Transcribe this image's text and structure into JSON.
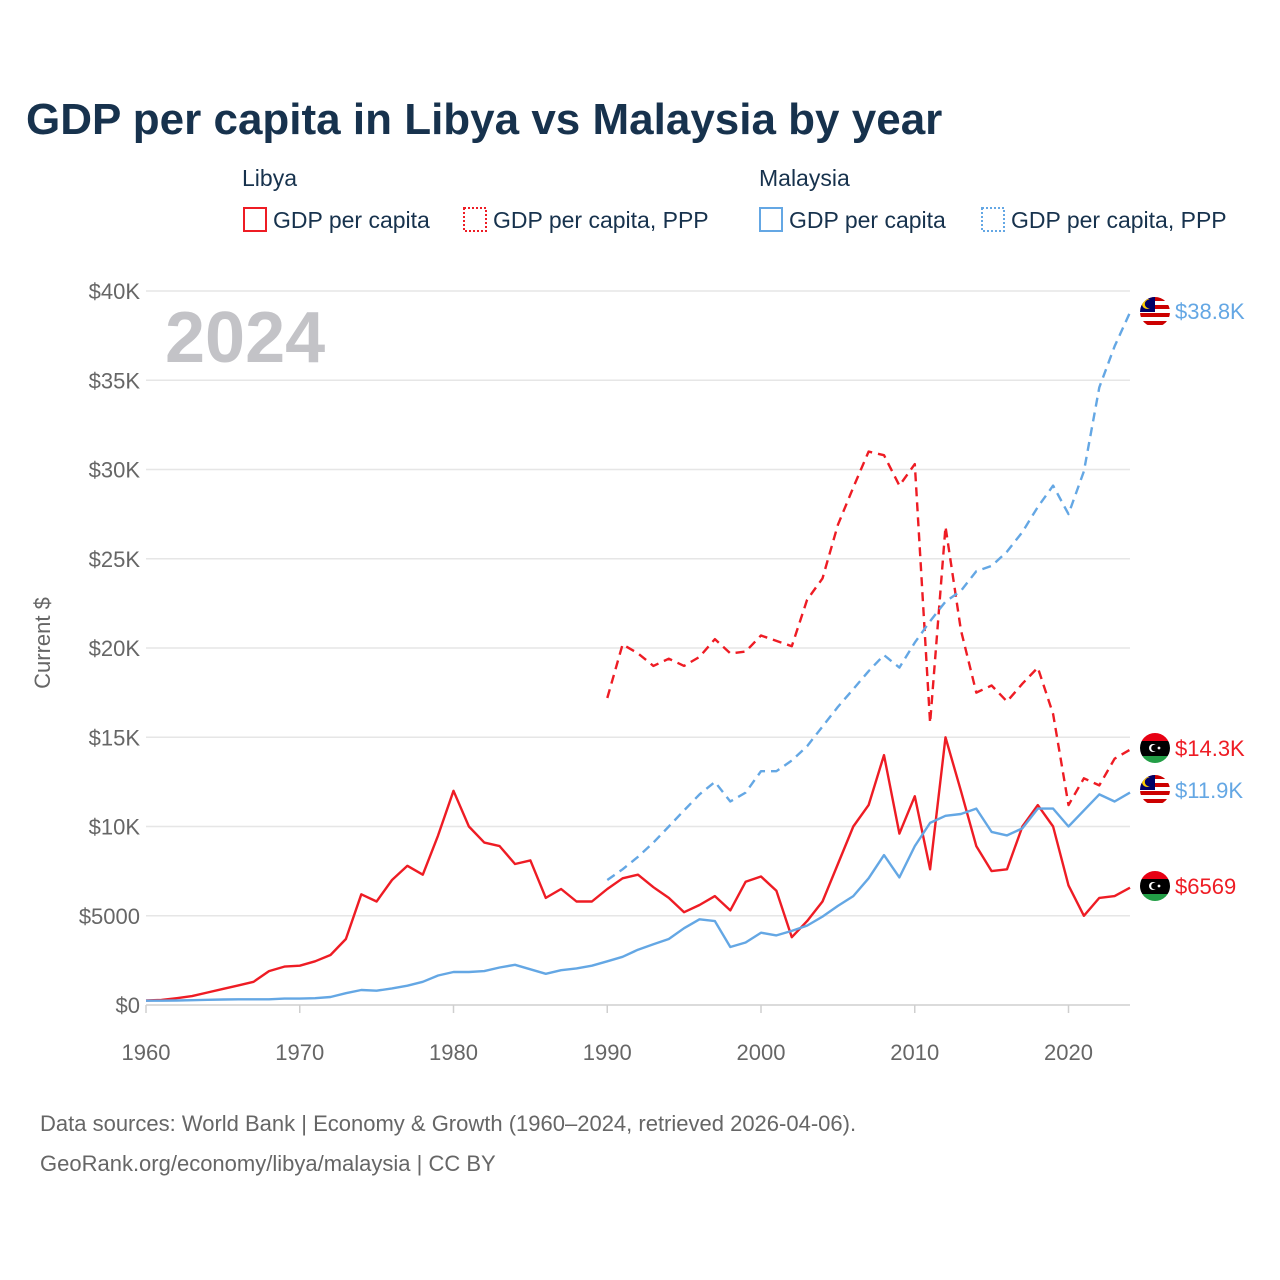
{
  "title": "GDP per capita in Libya vs Malaysia by year",
  "year_label": "2024",
  "legend": {
    "libya": {
      "group": "Libya",
      "gdp": "GDP per capita",
      "ppp": "GDP per capita, PPP"
    },
    "malaysia": {
      "group": "Malaysia",
      "gdp": "GDP per capita",
      "ppp": "GDP per capita, PPP"
    }
  },
  "colors": {
    "libya": "#ee1c24",
    "malaysia": "#64a7e4",
    "title": "#17324d"
  },
  "source": {
    "line1": "Data sources: World Bank | Economy & Growth (1960–2024, retrieved 2026-04-06).",
    "line2": "GeoRank.org/economy/libya/malaysia | CC BY"
  },
  "end_labels": {
    "malaysia_ppp": "$38.8K",
    "libya_ppp": "$14.3K",
    "malaysia_gdp": "$11.9K",
    "libya_gdp": "$6569"
  },
  "chart_data": {
    "type": "line",
    "title": "GDP per capita in Libya vs Malaysia by year",
    "xlabel": "",
    "ylabel": "Current $",
    "xlim": [
      1960,
      2024
    ],
    "ylim": [
      0,
      40000
    ],
    "x_ticks": [
      1960,
      1970,
      1980,
      1990,
      2000,
      2010,
      2020
    ],
    "x_tick_labels": [
      "1960",
      "1970",
      "1980",
      "1990",
      "2000",
      "2010",
      "2020"
    ],
    "y_ticks": [
      0,
      5000,
      10000,
      15000,
      20000,
      25000,
      30000,
      35000,
      40000
    ],
    "y_tick_labels": [
      "$0",
      "$5000",
      "$10K",
      "$15K",
      "$20K",
      "$25K",
      "$30K",
      "$35K",
      "$40K"
    ],
    "grid": true,
    "series": [
      {
        "name": "Libya GDP per capita",
        "country": "libya",
        "dashed": false,
        "start_year": 1960,
        "values": [
          250,
          280,
          380,
          500,
          700,
          900,
          1100,
          1300,
          1900,
          2150,
          2200,
          2450,
          2800,
          3700,
          6200,
          5800,
          7000,
          7800,
          7300,
          9500,
          12000,
          10000,
          9100,
          8900,
          7900,
          8100,
          6000,
          6500,
          5800,
          5800,
          6500,
          7100,
          7300,
          6600,
          6000,
          5200,
          5600,
          6100,
          5300,
          6900,
          7200,
          6400,
          3800,
          4700,
          5800,
          7900,
          10000,
          11200,
          14000,
          9600,
          11700,
          7600,
          15000,
          12000,
          8900,
          7500,
          7600,
          10000,
          11200,
          10000,
          6700,
          5000,
          6000,
          6100,
          6569
        ]
      },
      {
        "name": "Libya GDP per capita, PPP",
        "country": "libya",
        "dashed": true,
        "start_year": 1990,
        "values": [
          17200,
          20200,
          19700,
          19000,
          19400,
          19000,
          19500,
          20500,
          19700,
          19800,
          20700,
          20400,
          20100,
          22700,
          23900,
          26900,
          29000,
          31000,
          30800,
          29100,
          30300,
          15800,
          26800,
          21000,
          17500,
          17900,
          17000,
          18000,
          18900,
          16300,
          11200,
          12700,
          12300,
          13800,
          14300
        ]
      },
      {
        "name": "Malaysia GDP per capita",
        "country": "malaysia",
        "dashed": false,
        "start_year": 1960,
        "values": [
          240,
          240,
          250,
          270,
          290,
          310,
          320,
          320,
          320,
          360,
          360,
          380,
          450,
          660,
          840,
          800,
          930,
          1080,
          1300,
          1650,
          1850,
          1850,
          1900,
          2100,
          2250,
          2000,
          1750,
          1950,
          2050,
          2200,
          2450,
          2700,
          3100,
          3400,
          3700,
          4300,
          4800,
          4700,
          3250,
          3500,
          4050,
          3900,
          4150,
          4450,
          4950,
          5550,
          6100,
          7100,
          8400,
          7150,
          8900,
          10200,
          10600,
          10700,
          11000,
          9700,
          9500,
          9900,
          11000,
          11000,
          10000,
          10900,
          11800,
          11400,
          11900
        ]
      },
      {
        "name": "Malaysia GDP per capita, PPP",
        "country": "malaysia",
        "dashed": true,
        "start_year": 1990,
        "values": [
          7000,
          7600,
          8300,
          9100,
          10000,
          10900,
          11800,
          12500,
          11400,
          11900,
          13100,
          13100,
          13700,
          14500,
          15600,
          16700,
          17700,
          18700,
          19600,
          18900,
          20300,
          21500,
          22600,
          23200,
          24300,
          24600,
          25400,
          26500,
          27900,
          29100,
          27500,
          29900,
          34600,
          36900,
          38800
        ]
      }
    ]
  }
}
